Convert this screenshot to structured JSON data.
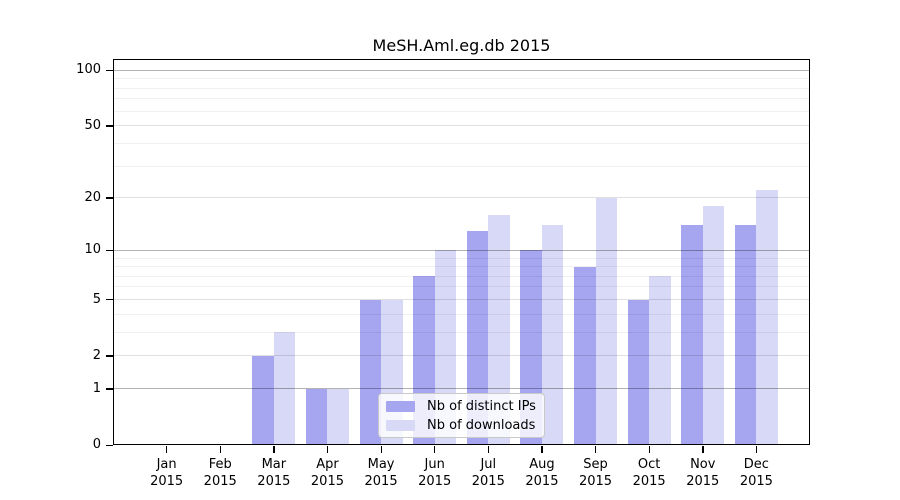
{
  "title": "MeSH.Aml.eg.db 2015",
  "colors": {
    "distinct_ips_bar": "#a5a5f0",
    "downloads_bar": "#d8d8f7",
    "axis": "#000000"
  },
  "legend": {
    "items": [
      {
        "label": "Nb of distinct IPs"
      },
      {
        "label": "Nb of downloads"
      }
    ]
  },
  "chart_data": {
    "type": "bar",
    "title": "MeSH.Aml.eg.db 2015",
    "categories": [
      "Jan",
      "Feb",
      "Mar",
      "Apr",
      "May",
      "Jun",
      "Jul",
      "Aug",
      "Sep",
      "Oct",
      "Nov",
      "Dec"
    ],
    "x_year_label": "2015",
    "series": [
      {
        "name": "Nb of distinct IPs",
        "color": "#a5a5f0",
        "values": [
          0,
          0,
          2,
          1,
          5,
          7,
          13,
          10,
          8,
          5,
          14,
          14
        ]
      },
      {
        "name": "Nb of downloads",
        "color": "#d8d8f7",
        "values": [
          0,
          0,
          3,
          1,
          5,
          10,
          16,
          14,
          20,
          7,
          18,
          22
        ]
      }
    ],
    "yscale": "log1p",
    "yticks": [
      0,
      1,
      2,
      5,
      10,
      20,
      50,
      100
    ],
    "major_decade_lines": [
      1,
      10,
      100
    ],
    "minor_gridlines": [
      3,
      4,
      6,
      7,
      8,
      9,
      30,
      40,
      60,
      70,
      80,
      90
    ],
    "ylim": [
      0,
      115
    ],
    "grid": "horizontal",
    "legend_position": "inside-bottom-center",
    "xlabel": "",
    "ylabel": ""
  }
}
